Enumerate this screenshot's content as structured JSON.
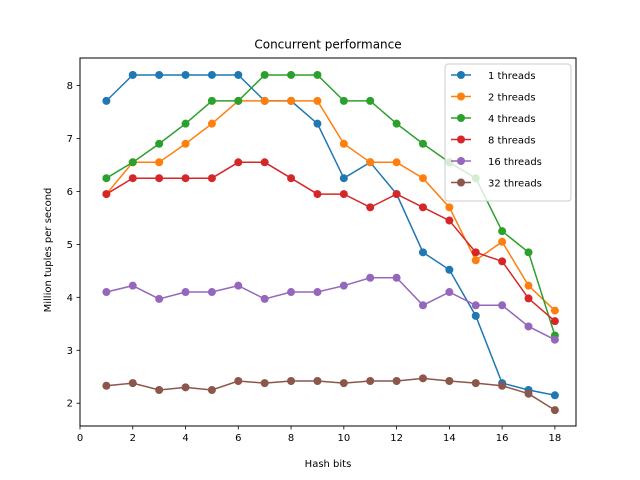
{
  "chart_data": {
    "type": "line",
    "title": "Concurrent performance",
    "xlabel": "Hash bits",
    "ylabel": "Million tuples per second",
    "xlim": [
      0,
      18.8
    ],
    "ylim": [
      1.57,
      8.52
    ],
    "xticks": [
      0,
      2,
      4,
      6,
      8,
      10,
      12,
      14,
      16,
      18
    ],
    "yticks": [
      2,
      3,
      4,
      5,
      6,
      7,
      8
    ],
    "grid": false,
    "legend_position": "top-right",
    "x": [
      1,
      2,
      3,
      4,
      5,
      6,
      7,
      8,
      9,
      10,
      11,
      12,
      13,
      14,
      15,
      16,
      17,
      18
    ],
    "series": [
      {
        "name": "1 threads",
        "color": "#1f77b4",
        "values": [
          7.71,
          8.2,
          8.2,
          8.2,
          8.2,
          8.2,
          7.71,
          7.71,
          7.28,
          6.25,
          6.55,
          5.95,
          4.85,
          4.52,
          3.65,
          2.38,
          2.25,
          2.15
        ]
      },
      {
        "name": "2 threads",
        "color": "#ff7f0e",
        "values": [
          5.95,
          6.55,
          6.55,
          6.9,
          7.28,
          7.71,
          7.71,
          7.71,
          7.71,
          6.9,
          6.55,
          6.55,
          6.25,
          5.7,
          4.7,
          5.05,
          4.22,
          3.75
        ]
      },
      {
        "name": "4 threads",
        "color": "#2ca02c",
        "values": [
          6.25,
          6.55,
          6.9,
          7.28,
          7.71,
          7.71,
          8.2,
          8.2,
          8.2,
          7.71,
          7.71,
          7.28,
          6.9,
          6.55,
          6.25,
          5.25,
          4.85,
          3.28
        ]
      },
      {
        "name": "8 threads",
        "color": "#d62728",
        "values": [
          5.95,
          6.25,
          6.25,
          6.25,
          6.25,
          6.55,
          6.55,
          6.25,
          5.95,
          5.95,
          5.7,
          5.95,
          5.7,
          5.45,
          4.85,
          4.68,
          3.98,
          3.55
        ]
      },
      {
        "name": "16 threads",
        "color": "#9467bd",
        "values": [
          4.1,
          4.22,
          3.97,
          4.1,
          4.1,
          4.22,
          3.97,
          4.1,
          4.1,
          4.22,
          4.37,
          4.37,
          3.85,
          4.1,
          3.85,
          3.85,
          3.45,
          3.2
        ]
      },
      {
        "name": "32 threads",
        "color": "#8c564b",
        "values": [
          2.33,
          2.38,
          2.25,
          2.3,
          2.25,
          2.42,
          2.38,
          2.42,
          2.42,
          2.38,
          2.42,
          2.42,
          2.47,
          2.42,
          2.38,
          2.33,
          2.18,
          1.87
        ]
      }
    ]
  }
}
